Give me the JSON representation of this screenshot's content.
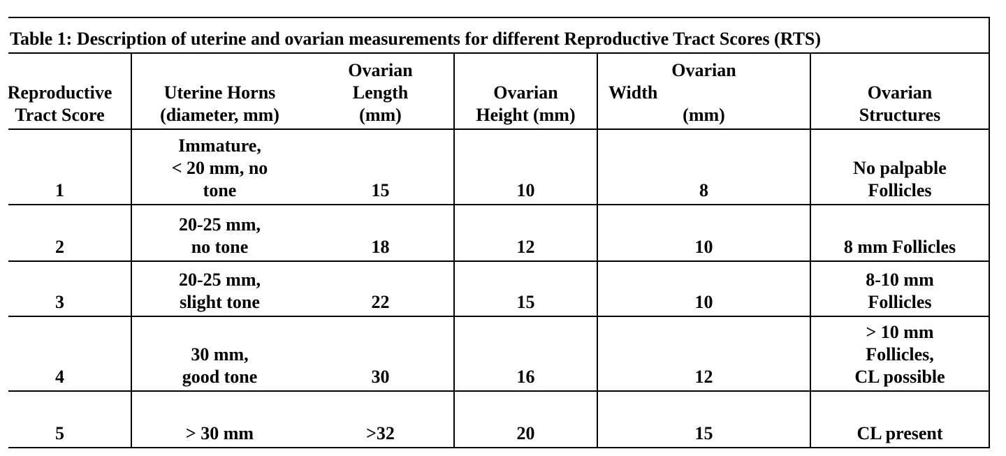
{
  "title": "Table 1: Description of uterine and ovarian measurements for different Reproductive Tract Scores (RTS)",
  "table": {
    "header": [
      [
        "Reproductive",
        "Tract Score"
      ],
      [
        "Uterine Horns",
        "(diameter, mm)"
      ],
      [
        "Ovarian",
        "Length",
        "(mm)"
      ],
      [
        "Ovarian",
        "Height (mm)"
      ],
      [
        "Ovarian",
        "Width",
        "(mm)"
      ],
      [
        "Ovarian",
        "Structures"
      ]
    ],
    "rows": [
      [
        [
          "1"
        ],
        [
          "Immature,",
          "< 20 mm, no",
          "tone"
        ],
        [
          "15"
        ],
        [
          "10"
        ],
        [
          "8"
        ],
        [
          "No palpable",
          "Follicles"
        ]
      ],
      [
        [
          "2"
        ],
        [
          "20-25 mm,",
          "no tone"
        ],
        [
          "18"
        ],
        [
          "12"
        ],
        [
          "10"
        ],
        [
          "8 mm Follicles"
        ]
      ],
      [
        [
          "3"
        ],
        [
          "20-25 mm,",
          "slight tone"
        ],
        [
          "22"
        ],
        [
          "15"
        ],
        [
          "10"
        ],
        [
          "8-10 mm",
          "Follicles"
        ]
      ],
      [
        [
          "4"
        ],
        [
          "30 mm,",
          "good tone"
        ],
        [
          "30"
        ],
        [
          "16"
        ],
        [
          "12"
        ],
        [
          "> 10 mm",
          "Follicles,",
          "CL possible"
        ]
      ],
      [
        [
          "5"
        ],
        [
          "> 30 mm"
        ],
        [
          ">32"
        ],
        [
          "20"
        ],
        [
          "15"
        ],
        [
          "CL present"
        ]
      ]
    ]
  }
}
